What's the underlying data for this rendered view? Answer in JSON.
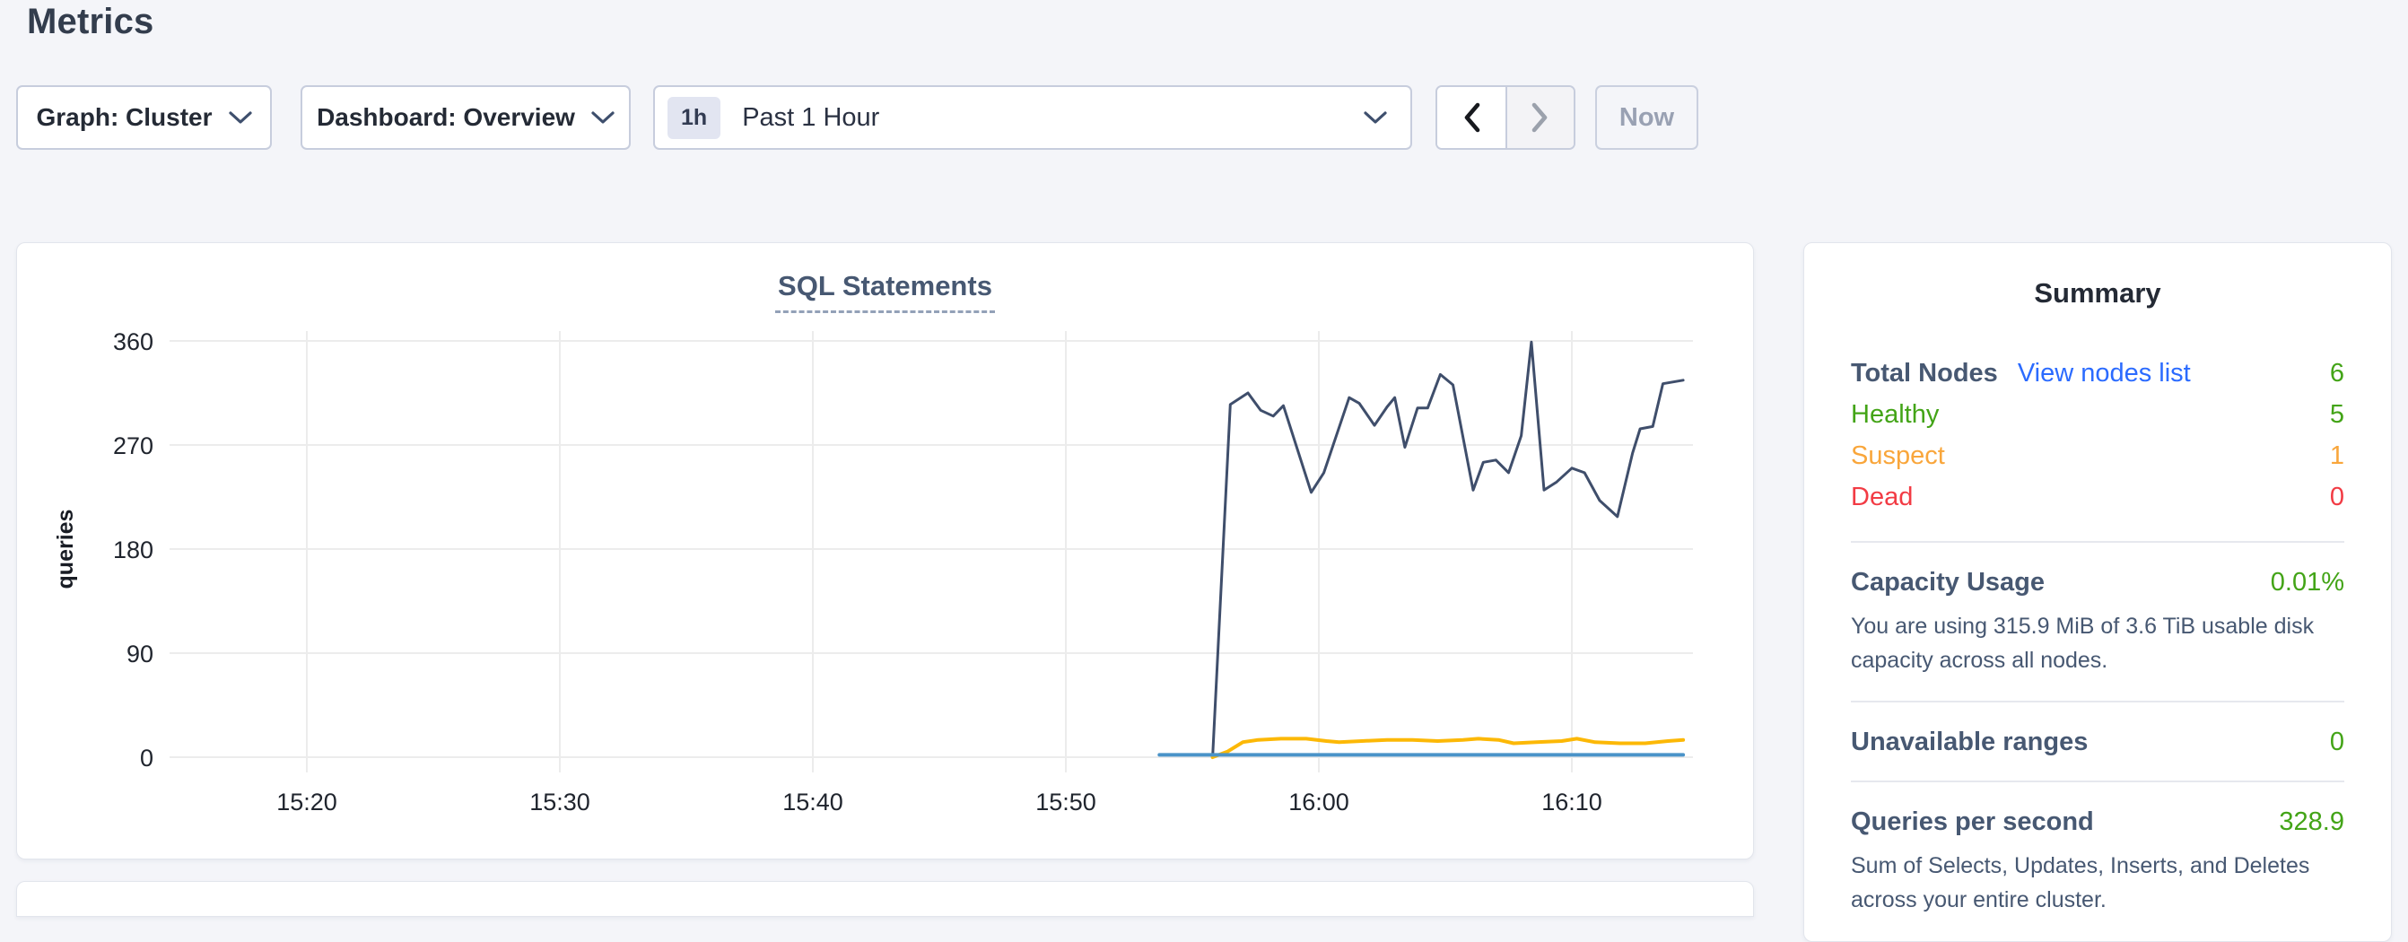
{
  "page": {
    "title": "Metrics",
    "background": "#f4f5f9"
  },
  "toolbar": {
    "graph_dropdown": {
      "text": "Graph: Cluster"
    },
    "dashboard_dropdown": {
      "text": "Dashboard: Overview"
    },
    "time_selector": {
      "badge": "1h",
      "label": "Past 1 Hour"
    },
    "nav": {
      "back_icon": "chevron-left",
      "forward_icon": "chevron-right",
      "forward_disabled": true
    },
    "now_button_label": "Now"
  },
  "chart_data": {
    "type": "line",
    "title": "SQL Statements",
    "ylabel": "queries",
    "grid": true,
    "legend": "none",
    "ylim": [
      0,
      360
    ],
    "y_ticks": [
      0,
      90,
      180,
      270,
      360
    ],
    "x_ticks": [
      {
        "label": "15:20",
        "t": 20
      },
      {
        "label": "15:30",
        "t": 30
      },
      {
        "label": "15:40",
        "t": 40
      },
      {
        "label": "15:50",
        "t": 50
      },
      {
        "label": "16:00",
        "t": 60
      },
      {
        "label": "16:10",
        "t": 70
      }
    ],
    "x_unit": "minutes after 15:00",
    "x_domain": [
      16.4,
      74.7
    ],
    "series": [
      {
        "name": "navy-line",
        "color": "#3f4e6b",
        "width": 3,
        "points": [
          [
            55.8,
            0
          ],
          [
            56.5,
            305
          ],
          [
            57.2,
            315
          ],
          [
            57.7,
            300
          ],
          [
            58.2,
            295
          ],
          [
            58.6,
            304
          ],
          [
            59.7,
            229
          ],
          [
            60.2,
            246
          ],
          [
            61.2,
            311
          ],
          [
            61.6,
            306
          ],
          [
            62.2,
            287
          ],
          [
            62.7,
            303
          ],
          [
            63.0,
            311
          ],
          [
            63.4,
            268
          ],
          [
            63.9,
            302
          ],
          [
            64.3,
            302
          ],
          [
            64.8,
            331
          ],
          [
            65.3,
            322
          ],
          [
            66.1,
            231
          ],
          [
            66.5,
            255
          ],
          [
            67.0,
            257
          ],
          [
            67.5,
            246
          ],
          [
            68.0,
            278
          ],
          [
            68.4,
            359
          ],
          [
            68.9,
            231
          ],
          [
            69.4,
            238
          ],
          [
            70.0,
            250
          ],
          [
            70.5,
            246
          ],
          [
            71.1,
            222
          ],
          [
            71.8,
            208
          ],
          [
            72.4,
            263
          ],
          [
            72.7,
            284
          ],
          [
            73.2,
            286
          ],
          [
            73.6,
            323
          ],
          [
            74.4,
            326
          ]
        ]
      },
      {
        "name": "yellow-line",
        "color": "#fcb806",
        "width": 4,
        "points": [
          [
            55.8,
            0
          ],
          [
            56.4,
            5
          ],
          [
            57.0,
            13
          ],
          [
            57.6,
            15
          ],
          [
            58.5,
            16
          ],
          [
            59.5,
            16
          ],
          [
            60.3,
            14
          ],
          [
            60.8,
            13
          ],
          [
            61.7,
            14
          ],
          [
            62.7,
            15
          ],
          [
            63.7,
            15
          ],
          [
            64.7,
            14
          ],
          [
            65.7,
            15
          ],
          [
            66.3,
            16
          ],
          [
            67.1,
            15
          ],
          [
            67.7,
            12
          ],
          [
            68.6,
            13
          ],
          [
            69.6,
            14
          ],
          [
            70.2,
            16
          ],
          [
            70.9,
            13
          ],
          [
            71.9,
            12
          ],
          [
            72.9,
            12
          ],
          [
            73.8,
            14
          ],
          [
            74.4,
            15
          ]
        ]
      },
      {
        "name": "blue-line",
        "color": "#4a93c8",
        "width": 4,
        "points": [
          [
            53.7,
            2
          ],
          [
            74.4,
            2
          ]
        ]
      }
    ]
  },
  "summary": {
    "title": "Summary",
    "nodes": {
      "label": "Total Nodes",
      "link": "View nodes list",
      "value": "6",
      "rows": [
        {
          "label": "Healthy",
          "value": "5",
          "color": "#43a417"
        },
        {
          "label": "Suspect",
          "value": "1",
          "color": "#f9a63b"
        },
        {
          "label": "Dead",
          "value": "0",
          "color": "#f23b44"
        }
      ]
    },
    "capacity": {
      "label": "Capacity Usage",
      "value": "0.01%",
      "description": "You are using 315.9 MiB of 3.6 TiB usable disk capacity across all nodes."
    },
    "unavailable_ranges": {
      "label": "Unavailable ranges",
      "value": "0"
    },
    "qps": {
      "label": "Queries per second",
      "value": "328.9",
      "description": "Sum of Selects, Updates, Inserts, and Deletes across your entire cluster."
    }
  },
  "colors": {
    "green": "#43a417",
    "orange": "#f9a63b",
    "red": "#f23b44",
    "link_blue": "#2b6bff",
    "grid": "#ececec",
    "axis_text": "#20252e"
  }
}
